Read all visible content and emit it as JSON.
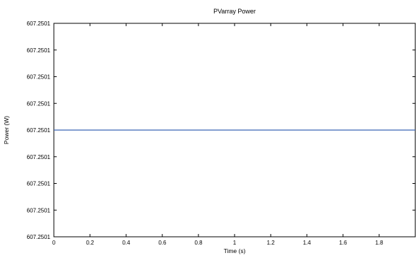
{
  "chart_data": {
    "type": "line",
    "title": "PVarray Power",
    "xlabel": "Time (s)",
    "ylabel": "Power (W)",
    "xlim": [
      0,
      2
    ],
    "x_ticks": [
      "0",
      "0.2",
      "0.4",
      "0.6",
      "0.8",
      "1",
      "1.2",
      "1.4",
      "1.6",
      "1.8"
    ],
    "y_ticks": [
      "607.2501",
      "607.2501",
      "607.2501",
      "607.2501",
      "607.2501",
      "607.2501",
      "607.2501",
      "607.2501"
    ],
    "grid": false,
    "series": [
      {
        "color": "#3a64b4",
        "x": [
          0,
          2
        ],
        "y": [
          607.2501,
          607.2501
        ]
      }
    ]
  }
}
